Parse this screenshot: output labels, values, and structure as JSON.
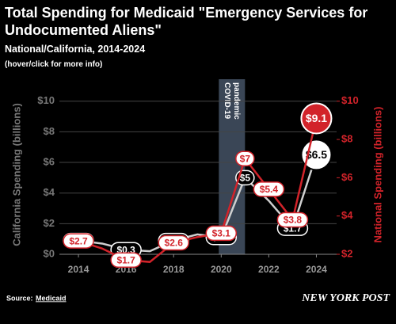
{
  "chart_data": {
    "type": "line",
    "title": "Total Spending for Medicaid \"Emergency Services for Undocumented Aliens\"",
    "subtitle": "National/California, 2014-2024",
    "note": "(hover/click for more info)",
    "ylabel": "California Spending (billions)",
    "y2label": "National Spending (billions)",
    "x": [
      2014,
      2015,
      2016,
      2017,
      2018,
      2019,
      2020,
      2021,
      2022,
      2023,
      2024
    ],
    "xlim": [
      2013.2,
      2024.85
    ],
    "xticks": [
      2014,
      2016,
      2018,
      2020,
      2022,
      2024
    ],
    "ylim": [
      0,
      10.4
    ],
    "yticks": [
      {
        "value": 0,
        "label": "$0"
      },
      {
        "value": 2,
        "label": "$2"
      },
      {
        "value": 4,
        "label": "$4"
      },
      {
        "value": 6,
        "label": "$6"
      },
      {
        "value": 8,
        "label": "$8"
      },
      {
        "value": 10,
        "label": "$10"
      }
    ],
    "y2lim": [
      2,
      10.32
    ],
    "y2ticks": [
      {
        "value": 2,
        "label": "$2"
      },
      {
        "value": 4,
        "label": "$4"
      },
      {
        "value": 6,
        "label": "$6"
      },
      {
        "value": 8,
        "label": "$8"
      },
      {
        "value": 10,
        "label": "$10"
      }
    ],
    "grid": true,
    "series": [
      {
        "name": "California",
        "color": "#cfcfcf",
        "axis": "y",
        "values": [
          0.9,
          0.7,
          0.3,
          0.2,
          0.9,
          1.3,
          1.1,
          5,
          3.5,
          1.7,
          6.5
        ],
        "value_labels": [
          "$0.9",
          null,
          "$0.3",
          null,
          "$0.9",
          null,
          "$1.1",
          "$5",
          null,
          "$1.7",
          "$6.5"
        ]
      },
      {
        "name": "National",
        "color": "#d2232a",
        "axis": "y2",
        "values": [
          2.7,
          2.3,
          1.7,
          1.6,
          2.6,
          2.9,
          3.1,
          7,
          5.4,
          3.8,
          9.1
        ],
        "value_labels": [
          "$2.7",
          null,
          "$1.7",
          null,
          "$2.6",
          null,
          "$3.1",
          "$7",
          "$5.4",
          "$3.8",
          "$9.1"
        ]
      }
    ],
    "annotation": {
      "lines": [
        "COVID-19",
        "pandemic"
      ],
      "x_start": 2019.9,
      "x_end": 2021
    },
    "source": {
      "label": "Source:",
      "text": "Medicaid"
    },
    "logo": "NEW YORK POST"
  }
}
